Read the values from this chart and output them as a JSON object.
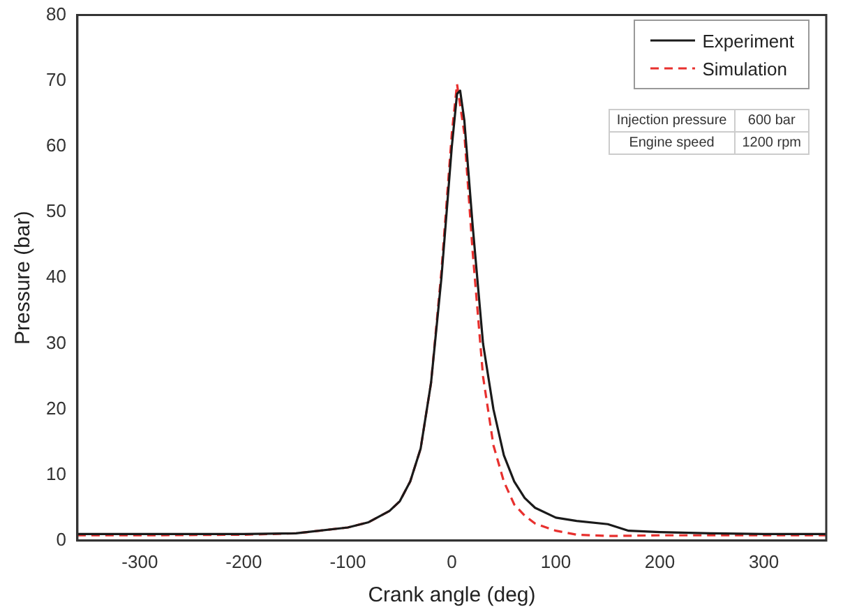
{
  "chart_data": {
    "type": "line",
    "xlabel": "Crank angle (deg)",
    "ylabel": "Pressure (bar)",
    "xlim": [
      -360,
      360
    ],
    "xticks": [
      -300,
      -200,
      -100,
      0,
      100,
      200,
      300
    ],
    "ylim": [
      0,
      80
    ],
    "yticks": [
      0,
      10,
      20,
      30,
      40,
      50,
      60,
      70,
      80
    ],
    "grid": false,
    "legend": "top right",
    "marker": "none",
    "annotations": [
      "Injection pressure",
      "600 bar",
      "Engine speed",
      "1200 rpm"
    ],
    "series": [
      {
        "name": "Experiment",
        "color": "#1a1a1a",
        "line_style": "solid",
        "x": [
          -360,
          -300,
          -200,
          -150,
          -100,
          -80,
          -60,
          -50,
          -40,
          -30,
          -20,
          -10,
          0,
          5,
          8,
          12,
          20,
          30,
          40,
          50,
          60,
          70,
          80,
          100,
          120,
          150,
          170,
          200,
          250,
          300,
          360
        ],
        "values": [
          1,
          1,
          1,
          1.1,
          2,
          2.8,
          4.5,
          6,
          9,
          14,
          24,
          40,
          60,
          68,
          68.5,
          64,
          48,
          30,
          20,
          13,
          9,
          6.5,
          5,
          3.5,
          3,
          2.5,
          1.5,
          1.3,
          1.1,
          1,
          1
        ]
      },
      {
        "name": "Simulation",
        "color": "#e8302e",
        "line_style": "dashed",
        "x": [
          -360,
          -300,
          -200,
          -150,
          -100,
          -80,
          -60,
          -50,
          -40,
          -30,
          -20,
          -10,
          0,
          5,
          12,
          20,
          30,
          40,
          50,
          60,
          70,
          80,
          100,
          120,
          150,
          200,
          300,
          360
        ],
        "values": [
          0.8,
          0.8,
          0.9,
          1.1,
          2,
          2.8,
          4.5,
          6,
          9,
          14,
          24,
          41,
          62,
          69.5,
          62,
          44,
          25,
          14.5,
          9,
          5.5,
          3.8,
          2.6,
          1.5,
          0.9,
          0.7,
          0.8,
          0.8,
          0.8
        ]
      }
    ]
  }
}
